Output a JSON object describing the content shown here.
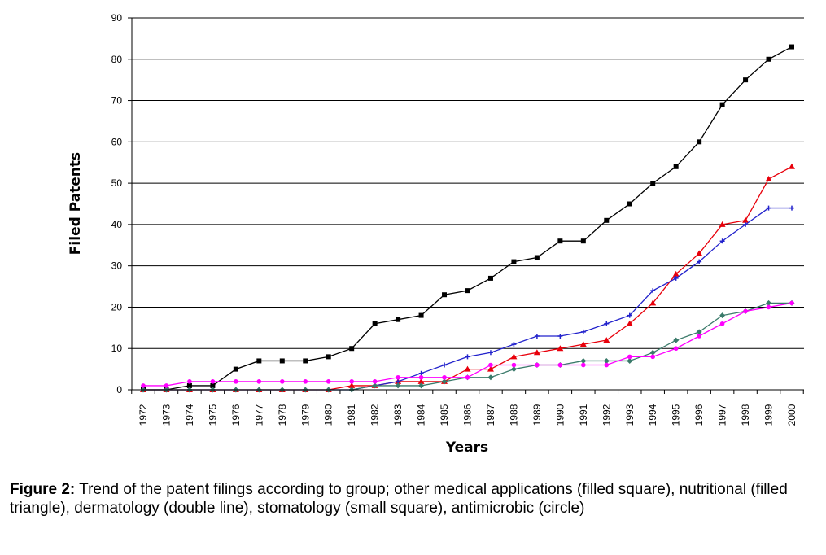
{
  "chart_data": {
    "type": "line",
    "xlabel": "Years",
    "ylabel": "Filed Patents",
    "ylim": [
      0,
      90
    ],
    "yticks": [
      "0",
      "10",
      "20",
      "30",
      "40",
      "50",
      "60",
      "70",
      "80",
      "90"
    ],
    "grid": "horizontal",
    "legend": "none",
    "x": [
      "1972",
      "1973",
      "1974",
      "1975",
      "1976",
      "1977",
      "1978",
      "1979",
      "1980",
      "1981",
      "1982",
      "1983",
      "1984",
      "1985",
      "1986",
      "1987",
      "1988",
      "1989",
      "1990",
      "1991",
      "1992",
      "1993",
      "1994",
      "1995",
      "1996",
      "1997",
      "1998",
      "1999",
      "2000"
    ],
    "series": [
      {
        "color": "#000000",
        "marker": "square",
        "values": [
          0,
          0,
          1,
          1,
          5,
          7,
          7,
          7,
          8,
          10,
          16,
          17,
          18,
          23,
          24,
          27,
          31,
          32,
          36,
          36,
          41,
          45,
          50,
          54,
          60,
          69,
          75,
          80,
          83
        ]
      },
      {
        "color": "#e8000b",
        "marker": "triangle",
        "values": [
          0,
          0,
          0,
          0,
          0,
          0,
          0,
          0,
          0,
          1,
          1,
          2,
          2,
          2,
          5,
          5,
          8,
          9,
          10,
          11,
          12,
          16,
          21,
          28,
          33,
          40,
          41,
          51,
          54
        ]
      },
      {
        "color": "#2222cc",
        "marker": "cross",
        "values": [
          0,
          0,
          0,
          0,
          0,
          0,
          0,
          0,
          0,
          0,
          1,
          2,
          4,
          6,
          8,
          9,
          11,
          13,
          13,
          14,
          16,
          18,
          24,
          27,
          31,
          36,
          40,
          44,
          44
        ]
      },
      {
        "color": "#3a7a6a",
        "marker": "diamond",
        "values": [
          0,
          0,
          0,
          0,
          0,
          0,
          0,
          0,
          0,
          0,
          1,
          1,
          1,
          2,
          3,
          3,
          5,
          6,
          6,
          7,
          7,
          7,
          9,
          12,
          14,
          18,
          19,
          21,
          21
        ]
      },
      {
        "color": "#ff00ff",
        "marker": "circle",
        "values": [
          1,
          1,
          2,
          2,
          2,
          2,
          2,
          2,
          2,
          2,
          2,
          3,
          3,
          3,
          3,
          6,
          6,
          6,
          6,
          6,
          6,
          8,
          8,
          10,
          13,
          16,
          19,
          20,
          21
        ]
      }
    ]
  },
  "caption": {
    "label": "Figure 2:",
    "text": " Trend of the patent filings according to group; other medical applications (filled square), nutritional (filled triangle), dermatology (double line), stomatology (small square), antimicrobic (circle)"
  }
}
